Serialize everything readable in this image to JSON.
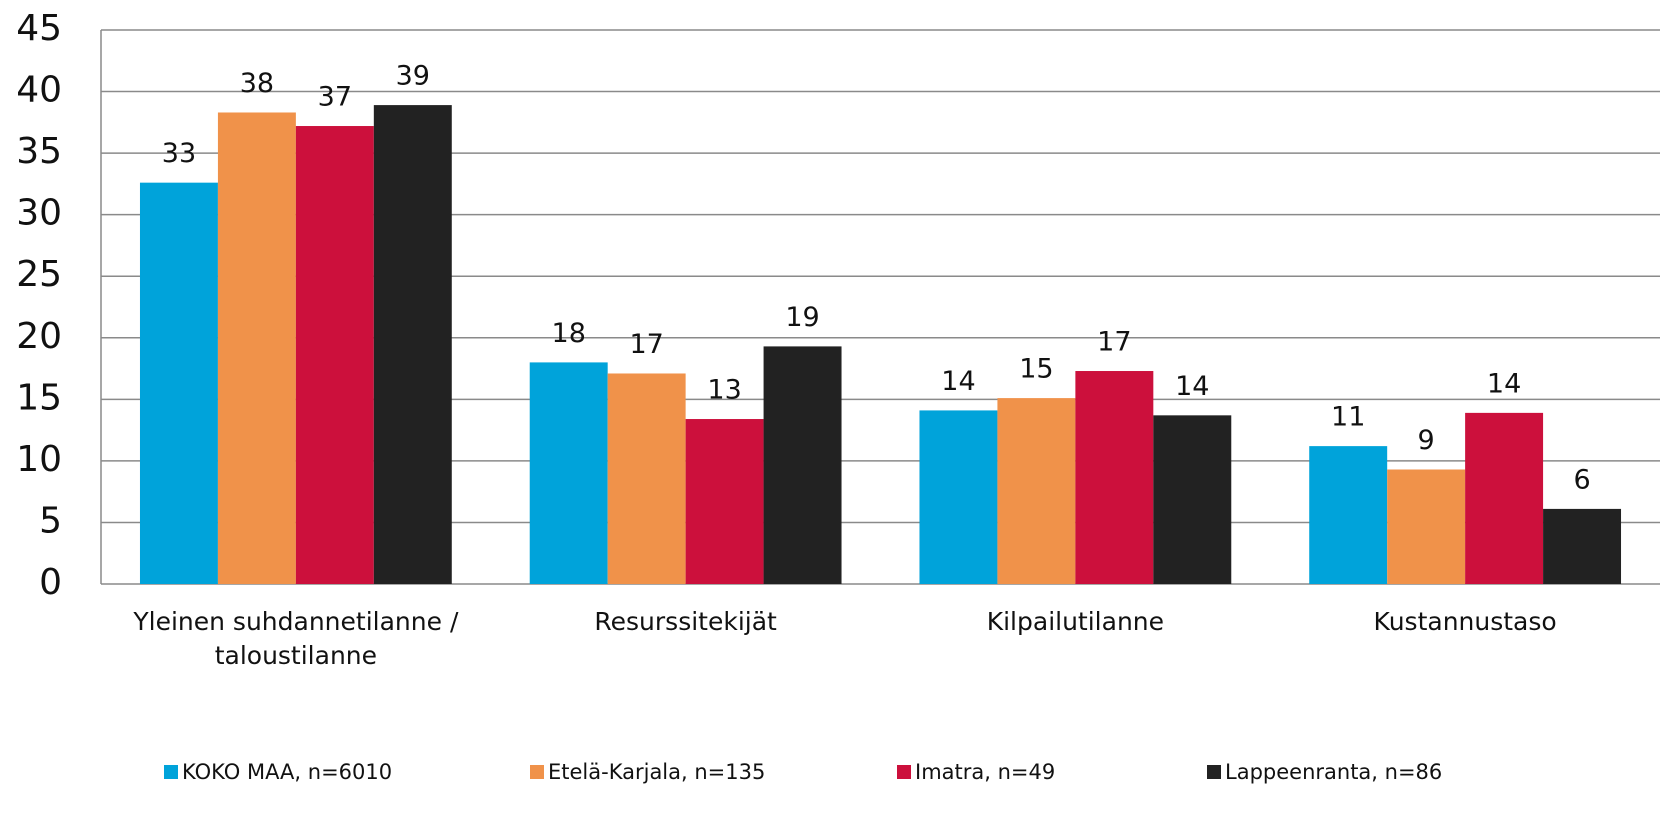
{
  "chart_data": {
    "type": "bar",
    "categories": [
      "Yleinen suhdannetilanne / taloustilanne",
      "Resurssitekijät",
      "Kilpailutilanne",
      "Kustannustaso"
    ],
    "series": [
      {
        "name": "KOKO MAA, n=6010",
        "color": "#00a3da",
        "values": [
          32.6,
          18.0,
          14.1,
          11.2
        ],
        "value_labels": [
          "33",
          "18",
          "14",
          "11"
        ]
      },
      {
        "name": "Etelä-Karjala, n=135",
        "color": "#f0924a",
        "values": [
          38.3,
          17.1,
          15.1,
          9.3
        ],
        "value_labels": [
          "38",
          "17",
          "15",
          "9"
        ]
      },
      {
        "name": "Imatra, n=49",
        "color": "#cc103c",
        "values": [
          37.2,
          13.4,
          17.3,
          13.9
        ],
        "value_labels": [
          "37",
          "13",
          "17",
          "14"
        ]
      },
      {
        "name": "Lappeenranta, n=86",
        "color": "#222222",
        "values": [
          38.9,
          19.3,
          13.7,
          6.1
        ],
        "value_labels": [
          "39",
          "19",
          "14",
          "6"
        ]
      }
    ],
    "ylim": [
      0,
      45
    ],
    "yticks": [
      0,
      5,
      10,
      15,
      20,
      25,
      30,
      35,
      40,
      45
    ],
    "grid": true,
    "legend": "bottom"
  }
}
